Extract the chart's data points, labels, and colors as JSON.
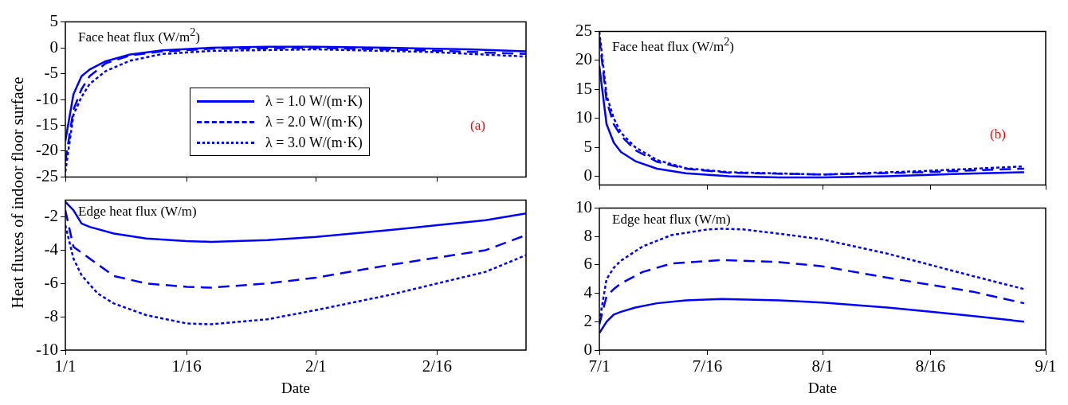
{
  "chart_data": [
    {
      "type": "line",
      "ylabel": "Heat fluxes of indoor floor surface",
      "annotations": [
        "Face heat flux (W/m$^{2}$)",
        "(a)"
      ],
      "xlim": [
        "--01-01",
        "--02-27"
      ],
      "xticks": [
        {
          "value": "--01-01",
          "label": "1/1"
        },
        {
          "value": "--01-16",
          "label": "1/16"
        },
        {
          "value": "--02-01",
          "label": "2/1"
        },
        {
          "value": "--02-16",
          "label": "2/16"
        }
      ],
      "ylim": [
        -25,
        5
      ],
      "yticks": [
        -25,
        -20,
        -15,
        -10,
        -5,
        0,
        5
      ],
      "tick_labels": "y",
      "legend": "center",
      "grid": false,
      "series": [
        {
          "name": "λ = 1.0 W/(m·K)",
          "color": "#0000ff",
          "line_style": "solid",
          "x": [
            "--01-01",
            "--01-02",
            "--01-03",
            "--01-04",
            "--01-06",
            "--01-09",
            "--01-13",
            "--01-19",
            "--01-26",
            "--02-01",
            "--02-10",
            "--02-20",
            "--02-27"
          ],
          "values": [
            -18,
            -9,
            -5.5,
            -4.2,
            -2.6,
            -1.3,
            -0.5,
            0,
            0.2,
            0.2,
            0,
            -0.3,
            -0.7
          ]
        },
        {
          "name": "λ = 2.0 W/(m·K)",
          "color": "#0000ff",
          "line_style": "dashed",
          "x": [
            "--01-01",
            "--01-02",
            "--01-03",
            "--01-04",
            "--01-06",
            "--01-09",
            "--01-13",
            "--01-19",
            "--02-01",
            "--02-15",
            "--02-27"
          ],
          "values": [
            -22,
            -12,
            -8,
            -5.5,
            -3,
            -1.5,
            -0.7,
            -0.2,
            0,
            -0.5,
            -1.2
          ]
        },
        {
          "name": "λ = 3.0 W/(m·K)",
          "color": "#0000ff",
          "line_style": "dotted",
          "x": [
            "--01-01",
            "--01-02",
            "--01-03",
            "--01-04",
            "--01-06",
            "--01-09",
            "--01-13",
            "--01-19",
            "--02-01",
            "--02-15",
            "--02-27"
          ],
          "values": [
            -24,
            -13,
            -9.5,
            -7,
            -4.5,
            -2.5,
            -1.2,
            -0.6,
            -0.3,
            -0.8,
            -1.7
          ]
        }
      ]
    },
    {
      "type": "line",
      "xlabel": "Date",
      "annotations": [
        "Edge heat flux (W/m)"
      ],
      "xlim": [
        "--01-01",
        "--02-27"
      ],
      "xticks": [
        {
          "value": "--01-01",
          "label": "1/1"
        },
        {
          "value": "--01-16",
          "label": "1/16"
        },
        {
          "value": "--02-01",
          "label": "2/1"
        },
        {
          "value": "--02-16",
          "label": "2/16"
        }
      ],
      "ylim": [
        -10,
        -1
      ],
      "yticks": [
        -10,
        -8,
        -6,
        -4,
        -2
      ],
      "grid": false,
      "series": [
        {
          "color": "#0000ff",
          "line_style": "solid",
          "x": [
            "--01-01",
            "--01-02",
            "--01-03",
            "--01-04",
            "--01-07",
            "--01-11",
            "--01-16",
            "--01-19",
            "--01-26",
            "--02-01",
            "--02-10",
            "--02-16",
            "--02-22",
            "--02-27"
          ],
          "values": [
            -1.1,
            -1.6,
            -2.4,
            -2.6,
            -3,
            -3.3,
            -3.45,
            -3.5,
            -3.4,
            -3.2,
            -2.8,
            -2.5,
            -2.2,
            -1.8
          ]
        },
        {
          "color": "#0000ff",
          "line_style": "dashed",
          "x": [
            "--01-01",
            "--01-02",
            "--01-04",
            "--01-07",
            "--01-11",
            "--01-16",
            "--01-19",
            "--01-26",
            "--02-01",
            "--02-10",
            "--02-16",
            "--02-22",
            "--02-27"
          ],
          "values": [
            -1.6,
            -3.8,
            -4.5,
            -5.55,
            -6,
            -6.2,
            -6.25,
            -6,
            -5.65,
            -4.9,
            -4.45,
            -4,
            -3.1
          ]
        },
        {
          "color": "#0000ff",
          "line_style": "dotted",
          "x": [
            "--01-01",
            "--01-02",
            "--01-03",
            "--01-05",
            "--01-07",
            "--01-11",
            "--01-16",
            "--01-19",
            "--01-26",
            "--02-01",
            "--02-10",
            "--02-16",
            "--02-22",
            "--02-27"
          ],
          "values": [
            -2.5,
            -4.5,
            -5.5,
            -6.6,
            -7.2,
            -7.9,
            -8.4,
            -8.45,
            -8.15,
            -7.6,
            -6.7,
            -6,
            -5.3,
            -4.3
          ]
        }
      ]
    },
    {
      "type": "line",
      "annotations": [
        "Face heat flux (W/m$^{2}$)",
        "(b)"
      ],
      "xlim": [
        "--07-01",
        "--09-01"
      ],
      "xticks": [
        {
          "value": "--07-01",
          "label": "7/1"
        },
        {
          "value": "--07-16",
          "label": "7/16"
        },
        {
          "value": "--08-01",
          "label": "8/1"
        },
        {
          "value": "--08-16",
          "label": "8/16"
        },
        {
          "value": "--09-01",
          "label": "9/1"
        }
      ],
      "ylim": [
        -1.5,
        25
      ],
      "yticks": [
        0,
        5,
        10,
        15,
        20,
        25
      ],
      "tick_labels": "y",
      "grid": false,
      "series": [
        {
          "color": "#0000ff",
          "line_style": "solid",
          "x": [
            "--07-01",
            "--07-02",
            "--07-03",
            "--07-04",
            "--07-06",
            "--07-09",
            "--07-13",
            "--07-19",
            "--07-26",
            "--08-01",
            "--08-10",
            "--08-20",
            "--08-29"
          ],
          "values": [
            19,
            9,
            5.8,
            4.2,
            2.6,
            1.3,
            0.5,
            0,
            -0.2,
            -0.2,
            0,
            0.4,
            0.7
          ]
        },
        {
          "color": "#0000ff",
          "line_style": "dashed",
          "x": [
            "--07-01",
            "--07-02",
            "--07-03",
            "--07-04",
            "--07-06",
            "--07-09",
            "--07-13",
            "--07-19",
            "--08-01",
            "--08-15",
            "--08-29"
          ],
          "values": [
            24,
            13,
            9,
            7,
            4.5,
            2.5,
            1.3,
            0.6,
            0.3,
            0.7,
            1.3
          ]
        },
        {
          "color": "#0000ff",
          "line_style": "dotted",
          "x": [
            "--07-01",
            "--07-02",
            "--07-03",
            "--07-04",
            "--07-06",
            "--07-09",
            "--07-13",
            "--07-19",
            "--08-01",
            "--08-15",
            "--08-29"
          ],
          "values": [
            25,
            14,
            10,
            7.5,
            5,
            2.8,
            1.4,
            0.7,
            0.3,
            0.9,
            1.7
          ]
        }
      ]
    },
    {
      "type": "line",
      "xlabel": "Date",
      "annotations": [
        "Edge heat flux (W/m)"
      ],
      "xlim": [
        "--07-01",
        "--09-01"
      ],
      "xticks": [
        {
          "value": "--07-01",
          "label": "7/1"
        },
        {
          "value": "--07-16",
          "label": "7/16"
        },
        {
          "value": "--08-01",
          "label": "8/1"
        },
        {
          "value": "--08-16",
          "label": "8/16"
        },
        {
          "value": "--09-01",
          "label": "9/1"
        }
      ],
      "ylim": [
        0,
        10
      ],
      "yticks": [
        0,
        2,
        4,
        6,
        8,
        10
      ],
      "grid": false,
      "series": [
        {
          "color": "#0000ff",
          "line_style": "solid",
          "x": [
            "--07-01",
            "--07-02",
            "--07-03",
            "--07-04",
            "--07-06",
            "--07-09",
            "--07-13",
            "--07-18",
            "--07-26",
            "--08-01",
            "--08-10",
            "--08-16",
            "--08-22",
            "--08-29"
          ],
          "values": [
            1.2,
            2,
            2.5,
            2.7,
            3,
            3.3,
            3.5,
            3.6,
            3.5,
            3.35,
            3,
            2.7,
            2.4,
            2
          ]
        },
        {
          "color": "#0000ff",
          "line_style": "dashed",
          "x": [
            "--07-01",
            "--07-02",
            "--07-03",
            "--07-04",
            "--07-07",
            "--07-11",
            "--07-18",
            "--07-26",
            "--08-01",
            "--08-10",
            "--08-16",
            "--08-22",
            "--08-29"
          ],
          "values": [
            1.8,
            3.8,
            4.3,
            4.7,
            5.5,
            6.1,
            6.35,
            6.2,
            5.9,
            5.1,
            4.6,
            4.1,
            3.3
          ]
        },
        {
          "color": "#0000ff",
          "line_style": "dotted",
          "x": [
            "--07-01",
            "--07-02",
            "--07-03",
            "--07-04",
            "--07-07",
            "--07-11",
            "--07-16",
            "--07-18",
            "--07-21",
            "--07-26",
            "--08-01",
            "--08-10",
            "--08-16",
            "--08-22",
            "--08-29"
          ],
          "values": [
            2,
            5,
            5.8,
            6.3,
            7.3,
            8.1,
            8.5,
            8.55,
            8.5,
            8.2,
            7.8,
            6.8,
            6,
            5.2,
            4.3
          ]
        }
      ]
    }
  ]
}
